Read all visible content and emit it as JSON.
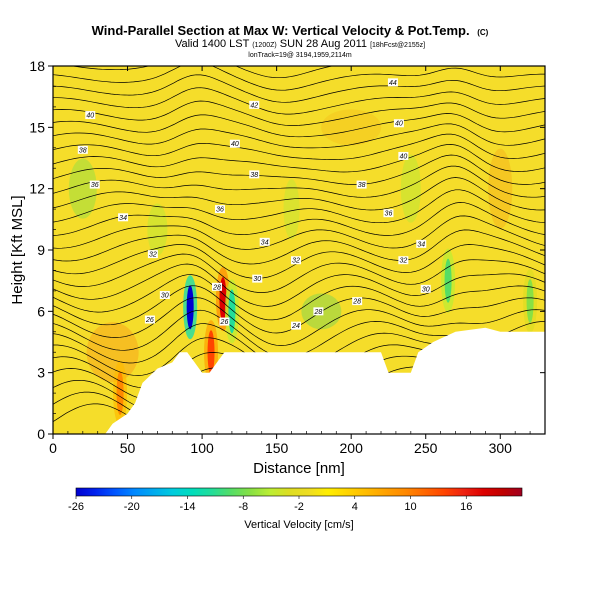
{
  "chart_data": {
    "type": "heatmap",
    "title": "Wind-Parallel Section at Max W: Vertical Velocity & Pot.Temp.",
    "title_mark": "(C)",
    "subtitle_main": "Valid 1400 LST",
    "subtitle_small1": "(1200Z)",
    "subtitle_mid": "SUN 28 Aug 2011",
    "subtitle_small2": "[18hFcst@2155z]",
    "subtitle3": "lonTrack=19@ 3194,1959,2114m",
    "xlabel": "Distance [nm]",
    "ylabel": "Height [Kft MSL]",
    "xlim": [
      0,
      330
    ],
    "ylim": [
      0,
      18
    ],
    "xticks": [
      "0",
      "50",
      "100",
      "150",
      "200",
      "250",
      "300"
    ],
    "xtick_values": [
      0,
      50,
      100,
      150,
      200,
      250,
      300
    ],
    "yticks": [
      "0",
      "3",
      "6",
      "9",
      "12",
      "15",
      "18"
    ],
    "ytick_values": [
      0,
      3,
      6,
      9,
      12,
      15,
      18
    ],
    "colorbar": {
      "label": "Vertical Velocity [cm/s]",
      "range": [
        -26,
        22
      ],
      "tick_labels": [
        "-26",
        "-20",
        "-14",
        "-8",
        "-2",
        "4",
        "10",
        "16"
      ],
      "tick_values": [
        -26,
        -20,
        -14,
        -8,
        -2,
        4,
        10,
        16
      ],
      "colors": [
        "#0000d0",
        "#0022ee",
        "#0055ff",
        "#0088ff",
        "#00aaee",
        "#00ccdd",
        "#00ddbb",
        "#22dd99",
        "#55dd66",
        "#88e044",
        "#bbee33",
        "#dddd22",
        "#eedd22",
        "#ffee00",
        "#ffd400",
        "#ffbb00",
        "#ffa000",
        "#ff8800",
        "#ff6600",
        "#ff4400",
        "#ee2211",
        "#dd0000",
        "#c00000",
        "#a00020"
      ]
    },
    "terrain": [
      [
        0,
        0
      ],
      [
        35,
        0
      ],
      [
        40,
        0.5
      ],
      [
        50,
        1
      ],
      [
        55,
        1.5
      ],
      [
        60,
        2.5
      ],
      [
        70,
        3.2
      ],
      [
        80,
        3.5
      ],
      [
        85,
        4
      ],
      [
        90,
        4
      ],
      [
        95,
        3.5
      ],
      [
        100,
        3
      ],
      [
        105,
        3
      ],
      [
        110,
        3.5
      ],
      [
        115,
        4
      ],
      [
        125,
        4
      ],
      [
        140,
        4
      ],
      [
        160,
        4
      ],
      [
        180,
        4
      ],
      [
        200,
        4
      ],
      [
        210,
        4
      ],
      [
        220,
        4
      ],
      [
        225,
        3
      ],
      [
        240,
        3
      ],
      [
        245,
        4
      ],
      [
        255,
        4.5
      ],
      [
        270,
        5
      ],
      [
        290,
        5.2
      ],
      [
        300,
        5
      ],
      [
        330,
        5
      ]
    ],
    "isentrope_labels": [
      {
        "text": "44",
        "x": 228,
        "y": 17.2
      },
      {
        "text": "42",
        "x": 135,
        "y": 16.1
      },
      {
        "text": "40",
        "x": 25,
        "y": 15.6
      },
      {
        "text": "40",
        "x": 122,
        "y": 14.2
      },
      {
        "text": "40",
        "x": 235,
        "y": 13.6
      },
      {
        "text": "40",
        "x": 232,
        "y": 15.2
      },
      {
        "text": "38",
        "x": 20,
        "y": 13.9
      },
      {
        "text": "38",
        "x": 135,
        "y": 12.7
      },
      {
        "text": "38",
        "x": 207,
        "y": 12.2
      },
      {
        "text": "36",
        "x": 28,
        "y": 12.2
      },
      {
        "text": "36",
        "x": 112,
        "y": 11.0
      },
      {
        "text": "36",
        "x": 225,
        "y": 10.8
      },
      {
        "text": "34",
        "x": 47,
        "y": 10.6
      },
      {
        "text": "34",
        "x": 142,
        "y": 9.4
      },
      {
        "text": "34",
        "x": 247,
        "y": 9.3
      },
      {
        "text": "32",
        "x": 67,
        "y": 8.8
      },
      {
        "text": "32",
        "x": 163,
        "y": 8.5
      },
      {
        "text": "32",
        "x": 235,
        "y": 8.5
      },
      {
        "text": "30",
        "x": 75,
        "y": 6.8
      },
      {
        "text": "30",
        "x": 137,
        "y": 7.6
      },
      {
        "text": "30",
        "x": 250,
        "y": 7.1
      },
      {
        "text": "28",
        "x": 110,
        "y": 7.2
      },
      {
        "text": "28",
        "x": 178,
        "y": 6.0
      },
      {
        "text": "28",
        "x": 204,
        "y": 6.5
      },
      {
        "text": "26",
        "x": 65,
        "y": 5.6
      },
      {
        "text": "26",
        "x": 115,
        "y": 5.5
      },
      {
        "text": "24",
        "x": 163,
        "y": 5.3
      }
    ],
    "updrafts": [
      {
        "x": 92,
        "y": 6.2,
        "w": -26
      },
      {
        "x": 114,
        "y": 6.6,
        "w": 18
      },
      {
        "x": 106,
        "y": 4.0,
        "w": 14
      },
      {
        "x": 120,
        "y": 6.0,
        "w": -12
      },
      {
        "x": 45,
        "y": 2.0,
        "w": 9
      },
      {
        "x": 265,
        "y": 7.5,
        "w": -9
      },
      {
        "x": 320,
        "y": 6.5,
        "w": -8
      }
    ]
  }
}
